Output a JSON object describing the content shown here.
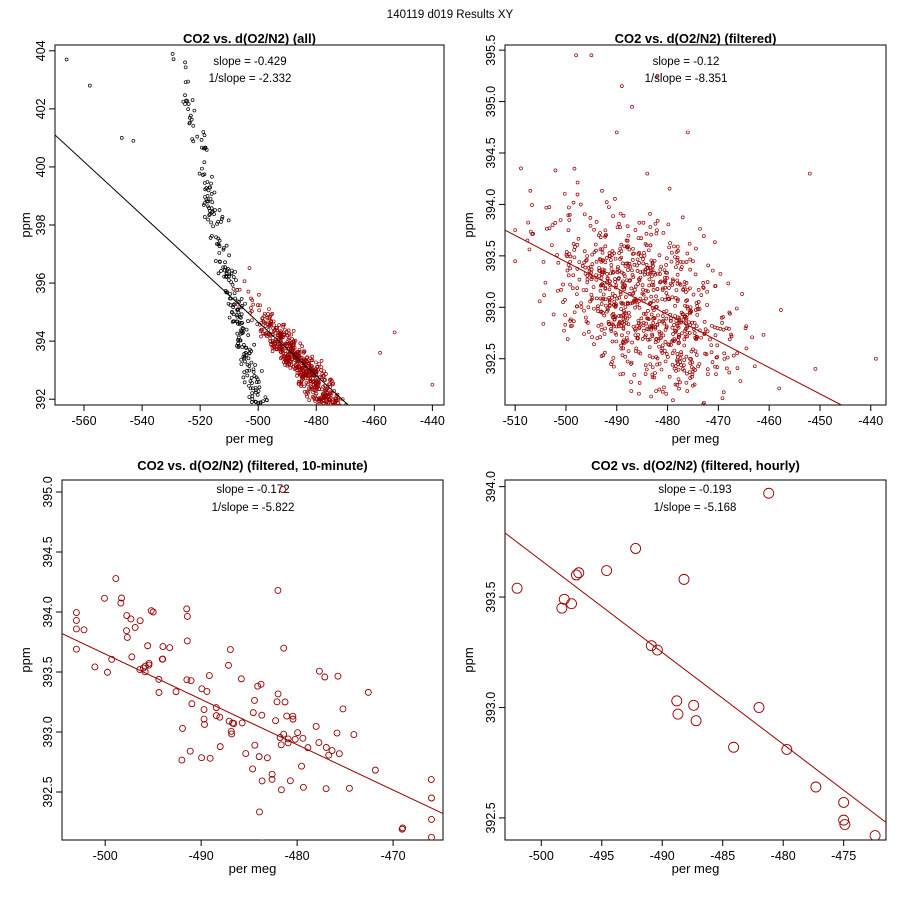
{
  "page_title": "140119   d019   Results XY",
  "colors": {
    "black": "#000000",
    "red": "#990000"
  },
  "chart_data": [
    {
      "type": "scatter",
      "title": "CO2 vs. d(O2/N2) (all)",
      "xlabel": "per meg",
      "ylabel": "ppm",
      "xlim": [
        -570,
        -436
      ],
      "ylim": [
        391.8,
        404.2
      ],
      "xticks": [
        -560,
        -540,
        -520,
        -500,
        -480,
        -460,
        -440
      ],
      "yticks": [
        392,
        394,
        396,
        398,
        400,
        402,
        404
      ],
      "slope_label": "slope = -0.429",
      "inv_slope_label": "1/slope = -2.332",
      "annotation_color": "black",
      "point_radius": 1.5,
      "fit_line": {
        "slope": -0.429,
        "x_at_left": -570,
        "y_at_left": 401.1,
        "x_end": -469,
        "y_end": 391.8,
        "color": "black"
      },
      "series": [
        {
          "name": "all",
          "color": "black",
          "n": 420,
          "xmean": -503,
          "xsd": 13,
          "intercept": 393.0,
          "slope": -0.429,
          "noise": 0.7,
          "xmin": -560,
          "xmax": -485
        },
        {
          "name": "filtered",
          "color": "red",
          "n": 650,
          "xmean": -484,
          "xsd": 9,
          "intercept": 393.0,
          "slope": -0.12,
          "noise": 0.35,
          "xmin": -510,
          "xmax": -440
        }
      ],
      "outliers": [
        {
          "x": -566,
          "y": 403.7,
          "color": "black"
        },
        {
          "x": -558,
          "y": 402.8,
          "color": "black"
        },
        {
          "x": -547,
          "y": 401.0,
          "color": "black"
        },
        {
          "x": -543,
          "y": 400.9,
          "color": "black"
        },
        {
          "x": -440,
          "y": 392.5,
          "color": "red"
        },
        {
          "x": -453,
          "y": 394.3,
          "color": "red"
        },
        {
          "x": -458,
          "y": 393.6,
          "color": "red"
        }
      ]
    },
    {
      "type": "scatter",
      "title": "CO2 vs. d(O2/N2) (filtered)",
      "xlabel": "per meg",
      "ylabel": "ppm",
      "xlim": [
        -512,
        -437
      ],
      "ylim": [
        392.05,
        395.55
      ],
      "xticks": [
        -510,
        -500,
        -490,
        -480,
        -470,
        -460,
        -450,
        -440
      ],
      "yticks": [
        392.5,
        393.0,
        393.5,
        394.0,
        394.5,
        395.0,
        395.5
      ],
      "slope_label": "slope = -0.12",
      "inv_slope_label": "1/slope = -8.351",
      "annotation_color": "red",
      "point_radius": 1.5,
      "fit_line": {
        "slope": -0.12,
        "x_at_left": -512,
        "y_at_left": 393.75,
        "x_end": -445.8,
        "y_end": 392.05,
        "color": "red"
      },
      "series": [
        {
          "name": "filtered",
          "color": "red",
          "n": 900,
          "xmean": -485,
          "xsd": 9,
          "intercept": 393.05,
          "slope": -0.026,
          "noise": 0.38,
          "xmin": -510,
          "xmax": -440
        }
      ],
      "outliers": [
        {
          "x": -498,
          "y": 395.45,
          "color": "red"
        },
        {
          "x": -495,
          "y": 395.45,
          "color": "red"
        },
        {
          "x": -482,
          "y": 395.25,
          "color": "red"
        },
        {
          "x": -489,
          "y": 395.15,
          "color": "red"
        },
        {
          "x": -487,
          "y": 394.95,
          "color": "red"
        },
        {
          "x": -490,
          "y": 394.7,
          "color": "red"
        },
        {
          "x": -476,
          "y": 394.7,
          "color": "red"
        },
        {
          "x": -452,
          "y": 394.3,
          "color": "red"
        },
        {
          "x": -484,
          "y": 394.3,
          "color": "red"
        },
        {
          "x": -439,
          "y": 392.5,
          "color": "red"
        }
      ]
    },
    {
      "type": "scatter",
      "title": "CO2 vs. d(O2/N2) (filtered, 10-minute)",
      "xlabel": "per meg",
      "ylabel": "ppm",
      "xlim": [
        -504.5,
        -464.8
      ],
      "ylim": [
        392.1,
        395.1
      ],
      "xticks": [
        -500,
        -490,
        -480,
        -470
      ],
      "yticks": [
        392.5,
        393.0,
        393.5,
        394.0,
        394.5,
        395.0
      ],
      "slope_label": "slope = -0.172",
      "inv_slope_label": "1/slope = -5.822",
      "annotation_color": "red",
      "point_radius": 3,
      "fit_line": {
        "slope": -0.172,
        "x_at_left": -504.5,
        "y_at_left": 393.82,
        "x_end": -464.8,
        "y_end": 392.32,
        "color": "red"
      },
      "series": [
        {
          "name": "10-minute",
          "color": "red",
          "n": 120,
          "xmean": -486,
          "xsd": 9,
          "intercept": 393.2,
          "slope": -0.038,
          "noise": 0.32,
          "xmin": -503,
          "xmax": -466
        }
      ],
      "outliers": [
        {
          "x": -495,
          "y": 394.0,
          "color": "red"
        },
        {
          "x": -482,
          "y": 394.18,
          "color": "red"
        },
        {
          "x": -466,
          "y": 392.45,
          "color": "red"
        },
        {
          "x": -469,
          "y": 392.2,
          "color": "red"
        },
        {
          "x": -481.5,
          "y": 395.02,
          "color": "red"
        }
      ]
    },
    {
      "type": "scatter",
      "title": "CO2 vs. d(O2/N2) (filtered, hourly)",
      "xlabel": "per meg",
      "ylabel": "ppm",
      "xlim": [
        -503,
        -471.5
      ],
      "ylim": [
        392.4,
        394.03
      ],
      "xticks": [
        -500,
        -495,
        -490,
        -485,
        -480,
        -475
      ],
      "yticks": [
        392.5,
        393.0,
        393.5,
        394.0
      ],
      "slope_label": "slope = -0.193",
      "inv_slope_label": "1/slope = -5.168",
      "annotation_color": "red",
      "point_radius": 5,
      "fit_line": {
        "slope": -0.193,
        "x_at_left": -503,
        "y_at_left": 393.79,
        "x_end": -471.5,
        "y_end": 392.48,
        "color": "red"
      },
      "points": {
        "x": [
          -502,
          -498.3,
          -498.1,
          -497.5,
          -497.1,
          -496.9,
          -494.6,
          -492.2,
          -490.9,
          -490.4,
          -488.8,
          -488.7,
          -487.4,
          -488.2,
          -487.2,
          -484.1,
          -481.2,
          -482.0,
          -479.7,
          -477.3,
          -475.0,
          -474.9,
          -475.0,
          -472.4
        ],
        "y": [
          393.54,
          393.45,
          393.49,
          393.47,
          393.6,
          393.61,
          393.62,
          393.72,
          393.28,
          393.26,
          393.03,
          392.97,
          393.01,
          393.58,
          392.94,
          392.82,
          393.97,
          393.0,
          392.81,
          392.64,
          392.57,
          392.47,
          392.49,
          392.42
        ],
        "color": "red"
      }
    }
  ]
}
